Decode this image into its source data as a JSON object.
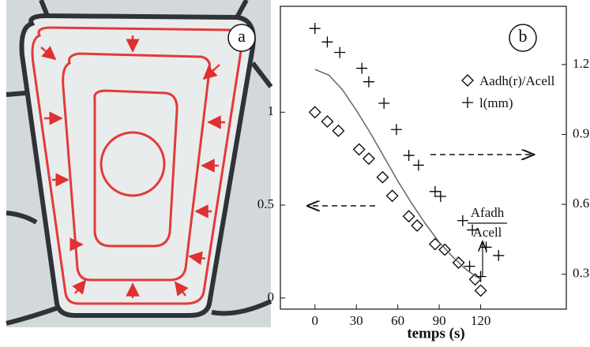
{
  "photo": {
    "panel_label": "a"
  },
  "chart_data": {
    "type": "scatter",
    "panel_label": "b",
    "x_label": "temps (s)",
    "xlim": [
      -25,
      182
    ],
    "xticks": [
      0,
      30,
      60,
      90,
      120
    ],
    "ylim": [
      -0.06,
      1.57
    ],
    "yticks": [
      0,
      0.5,
      1
    ],
    "y2lim": [
      0.15,
      1.45
    ],
    "y2ticks": [
      0.3,
      0.6,
      0.9,
      1.2
    ],
    "legend": "upper right",
    "annotation": {
      "numerator": "Afadh",
      "denominator": "Acell"
    },
    "series": [
      {
        "name": "Aadh(r)/Acell",
        "marker": "diamond",
        "color": "#000000",
        "x": [
          0,
          9,
          17,
          32,
          39,
          49,
          56,
          68,
          74,
          87,
          94,
          104,
          116,
          120
        ],
        "values": [
          1.0,
          0.95,
          0.9,
          0.8,
          0.75,
          0.65,
          0.55,
          0.44,
          0.39,
          0.29,
          0.26,
          0.19,
          0.1,
          0.04
        ]
      },
      {
        "name": "l(mm)",
        "marker": "plus",
        "color": "#000000",
        "axis": "y2",
        "x": [
          0,
          9,
          18,
          34,
          39,
          50,
          59,
          68,
          75,
          87,
          91,
          107,
          114,
          124,
          133,
          112,
          120
        ],
        "values": [
          1.355,
          1.297,
          1.252,
          1.184,
          1.126,
          1.034,
          0.921,
          0.81,
          0.768,
          0.655,
          0.634,
          0.53,
          0.49,
          0.416,
          0.38,
          0.334,
          0.29
        ]
      },
      {
        "marker": "line",
        "color": "#666666",
        "x": [
          0,
          10,
          20,
          30,
          40,
          50,
          60,
          70,
          80,
          90,
          100,
          110,
          120
        ],
        "values": [
          1.23,
          1.2,
          1.12,
          1.01,
          0.89,
          0.76,
          0.63,
          0.51,
          0.4,
          0.3,
          0.22,
          0.15,
          0.1
        ]
      }
    ]
  }
}
